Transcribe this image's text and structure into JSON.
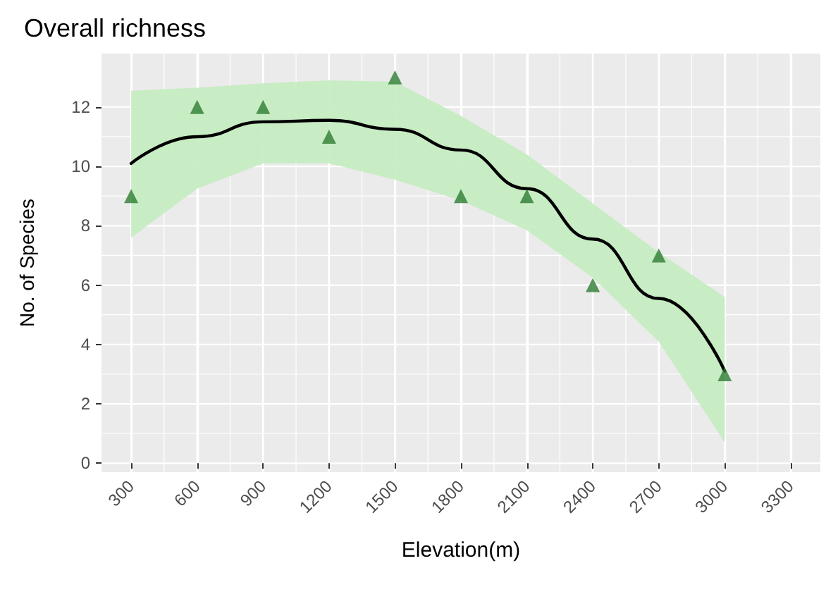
{
  "chart_data": {
    "type": "scatter",
    "title": "Overall richness",
    "xlabel": "Elevation(m)",
    "ylabel": "No. of Species",
    "xlim": [
      165,
      3435
    ],
    "xticks": [
      300,
      600,
      900,
      1200,
      1500,
      1800,
      2100,
      2400,
      2700,
      3000,
      3300
    ],
    "ylim": [
      -0.3,
      13.8
    ],
    "yticks": [
      0,
      2,
      4,
      6,
      8,
      10,
      12
    ],
    "grid": true,
    "series": [
      {
        "marker": "triangle",
        "color": "#2e7d32",
        "x": [
          300,
          600,
          900,
          1200,
          1500,
          1800,
          2100,
          2400,
          2700,
          3000
        ],
        "values": [
          9,
          12,
          12,
          11,
          13,
          9,
          9,
          6,
          7,
          3
        ]
      },
      {
        "type": "line",
        "marker": "none",
        "color": "#000000",
        "x": [
          300,
          600,
          900,
          1200,
          1500,
          1800,
          2100,
          2400,
          2700,
          3000
        ],
        "values": [
          10.1,
          11.0,
          11.5,
          11.55,
          11.25,
          10.55,
          9.25,
          7.55,
          5.55,
          3.1
        ],
        "lower": [
          7.6,
          9.25,
          10.1,
          10.1,
          9.55,
          8.85,
          7.85,
          6.25,
          4.1,
          0.7
        ],
        "upper": [
          12.55,
          12.65,
          12.8,
          12.9,
          12.85,
          11.7,
          10.4,
          8.75,
          7.1,
          5.6
        ]
      }
    ]
  }
}
